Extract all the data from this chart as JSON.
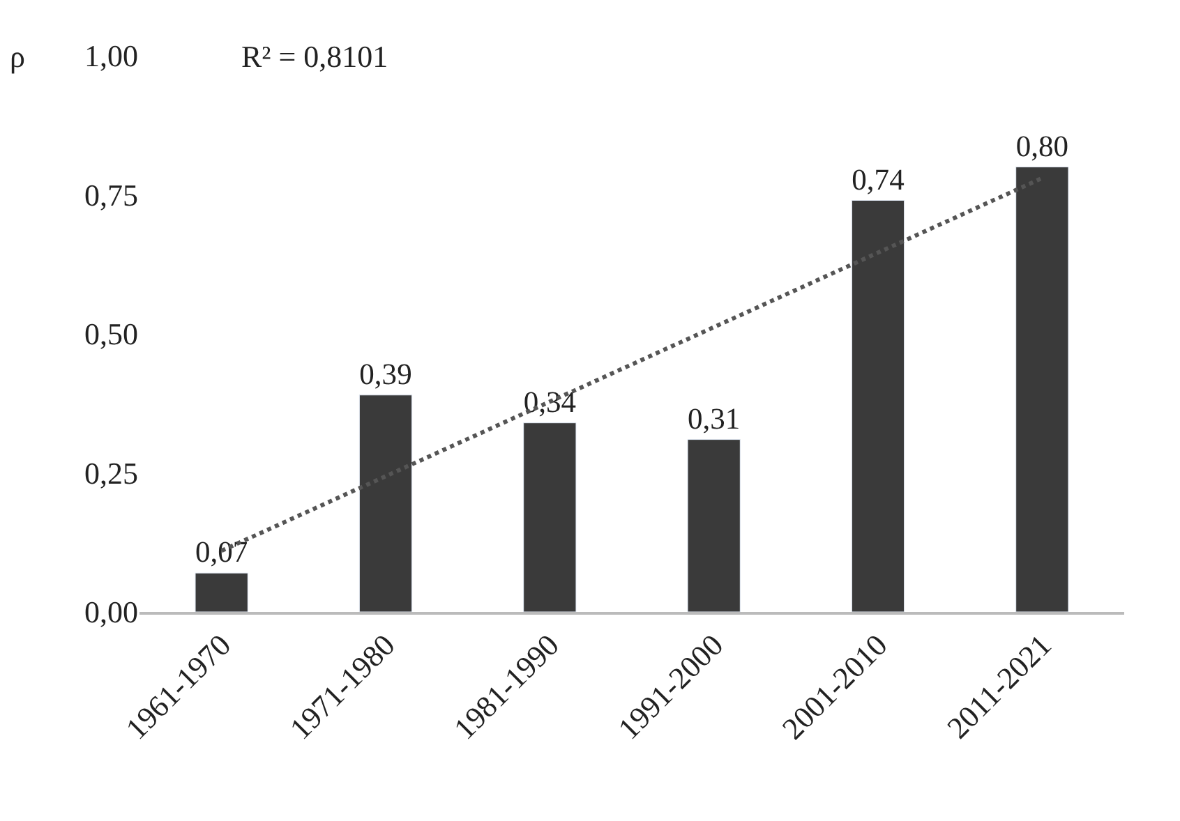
{
  "chart_data": {
    "type": "bar",
    "ylabel": "ρ",
    "annotations": [
      "R² = 0,8101"
    ],
    "categories": [
      "1961-1970",
      "1971-1980",
      "1981-1990",
      "1991-2000",
      "2001-2010",
      "2011-2021"
    ],
    "series": [
      {
        "color": "#3a3a3a",
        "values": [
          0.07,
          0.39,
          0.34,
          0.31,
          0.74,
          0.8
        ],
        "value_labels": [
          "0,07",
          "0,39",
          "0,34",
          "0,31",
          "0,74",
          "0,80"
        ]
      },
      {
        "type": "line",
        "color": "#555555",
        "line_style": "dotted",
        "x": [
          "1961-1970",
          "2011-2021"
        ],
        "values": [
          0.11,
          0.78
        ]
      }
    ],
    "ylim": [
      0,
      1
    ],
    "yticks": [
      {
        "value": 0,
        "label": "0,00"
      },
      {
        "value": 0.25,
        "label": "0,25"
      },
      {
        "value": 0.5,
        "label": "0,50"
      },
      {
        "value": 0.75,
        "label": "0,75"
      },
      {
        "value": 1,
        "label": "1,00"
      }
    ]
  }
}
